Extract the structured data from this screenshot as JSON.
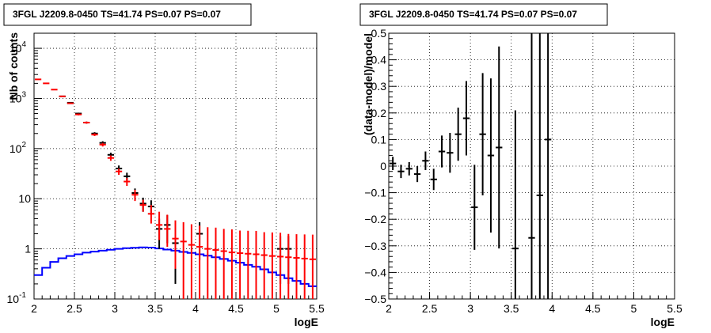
{
  "chart_data": [
    {
      "type": "line",
      "title": "3FGL J2209.8-0450 TS=41.74 PS=0.07 PS=0.07",
      "xlabel": "logE",
      "ylabel": "Nb of counts",
      "xlim": [
        2,
        5.5
      ],
      "ylim": [
        0.1,
        20000
      ],
      "yscale": "log",
      "grid": true,
      "x_ticks": [
        "2",
        "2.5",
        "3",
        "3.5",
        "4",
        "4.5",
        "5",
        "5.5"
      ],
      "y_ticks": [
        "10^-1",
        "1",
        "10",
        "10^2",
        "10^3",
        "10^4"
      ],
      "bin_edges": [
        2.0,
        2.1,
        2.2,
        2.3,
        2.4,
        2.5,
        2.6,
        2.7,
        2.8,
        2.9,
        3.0,
        3.1,
        3.2,
        3.3,
        3.4,
        3.5,
        3.6,
        3.7,
        3.8,
        3.9,
        4.0,
        4.1,
        4.2,
        4.3,
        4.4,
        4.5,
        4.6,
        4.7,
        4.8,
        4.9,
        5.0,
        5.1,
        5.2,
        5.3,
        5.4,
        5.5
      ],
      "series": [
        {
          "color": "#000000",
          "x": [
            2.35,
            2.45,
            2.55,
            2.65,
            2.75,
            2.85,
            2.95,
            3.05,
            3.15,
            3.25,
            3.35,
            3.45,
            3.55,
            3.65,
            3.75,
            4.05,
            5.05,
            5.15
          ],
          "y": [
            1100,
            820,
            500,
            330,
            200,
            130,
            75,
            40,
            28,
            13,
            8,
            7,
            2.5,
            3,
            1.3,
            2,
            1,
            1
          ],
          "err_low": [
            30,
            25,
            20,
            15,
            12,
            10,
            8,
            6,
            5,
            3,
            2.5,
            2.3,
            1.5,
            1.7,
            1.1,
            1.4,
            0.8,
            0.8
          ],
          "err_high": [
            30,
            25,
            20,
            15,
            12,
            10,
            8,
            6,
            5,
            3,
            2.5,
            2.3,
            1.5,
            1.7,
            1.1,
            1.4,
            0.8,
            0.8
          ]
        },
        {
          "color": "#ff0000",
          "x": [
            2.05,
            2.15,
            2.25,
            2.35,
            2.45,
            2.55,
            2.65,
            2.75,
            2.85,
            2.95,
            3.05,
            3.15,
            3.25,
            3.35,
            3.45,
            3.55,
            3.65,
            3.75,
            3.85,
            3.95,
            4.05,
            4.15,
            4.25,
            4.35,
            4.45,
            4.55,
            4.65,
            4.75,
            4.85,
            4.95,
            5.05,
            5.15,
            5.25,
            5.35,
            5.45
          ],
          "y": [
            2400,
            2000,
            1500,
            1100,
            800,
            480,
            330,
            190,
            120,
            65,
            35,
            22,
            12,
            7.5,
            5,
            3,
            2.5,
            1.6,
            1.4,
            1.2,
            1.1,
            1.0,
            0.95,
            0.9,
            0.85,
            0.82,
            0.8,
            0.78,
            0.75,
            0.72,
            0.7,
            0.68,
            0.66,
            0.64,
            0.62
          ],
          "err_low": [
            40,
            35,
            30,
            30,
            25,
            20,
            15,
            12,
            10,
            8,
            5,
            4,
            3,
            2,
            1.8,
            1.5,
            1.4,
            1.2,
            1.3,
            1.1,
            1.0,
            0.95,
            0.9,
            0.85,
            0.8,
            0.78,
            0.77,
            0.75,
            0.72,
            0.7,
            0.68,
            0.66,
            0.64,
            0.62,
            0.6
          ],
          "err_high": [
            40,
            35,
            30,
            30,
            25,
            20,
            15,
            12,
            10,
            8,
            5,
            4,
            3,
            2,
            2.5,
            2.5,
            2.3,
            2.1,
            2.0,
            1.9,
            1.8,
            1.7,
            1.7,
            1.6,
            1.6,
            1.5,
            1.5,
            1.5,
            1.4,
            1.4,
            1.4,
            1.3,
            1.3,
            1.3,
            1.3
          ]
        },
        {
          "color": "#0000ff",
          "style": "step",
          "y": [
            0.3,
            0.42,
            0.55,
            0.65,
            0.72,
            0.78,
            0.84,
            0.88,
            0.92,
            0.96,
            1.0,
            1.03,
            1.05,
            1.07,
            1.06,
            1.02,
            0.97,
            0.92,
            0.87,
            0.83,
            0.78,
            0.73,
            0.68,
            0.63,
            0.58,
            0.53,
            0.48,
            0.44,
            0.39,
            0.34,
            0.3,
            0.26,
            0.23,
            0.2,
            0.18
          ]
        }
      ]
    },
    {
      "type": "scatter",
      "title": "3FGL J2209.8-0450 TS=41.74 PS=0.07 PS=0.07",
      "xlabel": "logE",
      "ylabel": "(data-model)/model",
      "xlim": [
        2,
        5.5
      ],
      "ylim": [
        -0.5,
        0.5
      ],
      "grid": true,
      "x_ticks": [
        "2",
        "2.5",
        "3",
        "3.5",
        "4",
        "4.5",
        "5",
        "5.5"
      ],
      "y_ticks": [
        "−0.5",
        "−0.4",
        "−0.3",
        "−0.2",
        "−0.1",
        "0",
        "0.1",
        "0.2",
        "0.3",
        "0.4",
        "0.5"
      ],
      "series": [
        {
          "color": "#000000",
          "x": [
            2.05,
            2.15,
            2.25,
            2.35,
            2.45,
            2.55,
            2.65,
            2.75,
            2.85,
            2.95,
            3.05,
            3.15,
            3.25,
            3.35,
            3.55,
            3.75,
            3.85,
            3.95
          ],
          "y": [
            0.01,
            -0.02,
            -0.01,
            -0.03,
            0.02,
            -0.05,
            0.055,
            0.05,
            0.12,
            0.18,
            -0.155,
            0.12,
            0.04,
            0.07,
            -0.31,
            -0.27,
            -0.11,
            0.1
          ],
          "err": [
            0.025,
            0.025,
            0.025,
            0.03,
            0.035,
            0.04,
            0.06,
            0.075,
            0.1,
            0.14,
            0.16,
            0.23,
            0.29,
            0.38,
            0.52,
            0.8,
            0.8,
            0.8
          ]
        }
      ]
    }
  ]
}
